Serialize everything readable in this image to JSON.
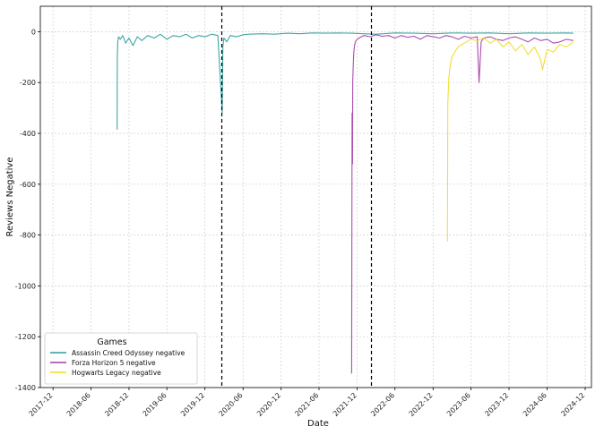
{
  "chart_data": {
    "type": "line",
    "xlabel": "Date",
    "ylabel": "Reviews Negative",
    "xlim": [
      "2017-10-01",
      "2024-12-31"
    ],
    "ylim": [
      -1400,
      100
    ],
    "x_ticks": [
      "2017-12-01",
      "2018-06-01",
      "2018-12-01",
      "2019-06-01",
      "2019-12-01",
      "2020-06-01",
      "2020-12-01",
      "2021-06-01",
      "2021-12-01",
      "2022-06-01",
      "2022-12-01",
      "2023-06-01",
      "2023-12-01",
      "2024-06-01",
      "2024-12-01"
    ],
    "x_tick_labels": [
      "2017-12",
      "2018-06",
      "2018-12",
      "2019-06",
      "2019-12",
      "2020-06",
      "2020-12",
      "2021-06",
      "2021-12",
      "2022-06",
      "2022-12",
      "2023-06",
      "2023-12",
      "2024-06",
      "2024-12"
    ],
    "y_ticks": [
      0,
      -200,
      -400,
      -600,
      -800,
      -1000,
      -1200,
      -1400
    ],
    "y_tick_labels": [
      "0",
      "-200",
      "-400",
      "-600",
      "-800",
      "-1000",
      "-1200",
      "-1400"
    ],
    "grid": true,
    "legend": {
      "title": "Games",
      "position": "lower-left"
    },
    "vlines": [
      "2020-02-20",
      "2022-02-08"
    ],
    "series": [
      {
        "name": "Assassin Creed Odyssey negative",
        "color": "#2a9d9a",
        "x": [
          "2018-10-05",
          "2018-10-06",
          "2018-10-08",
          "2018-10-12",
          "2018-10-20",
          "2018-11-01",
          "2018-11-15",
          "2018-12-01",
          "2018-12-20",
          "2019-01-10",
          "2019-02-01",
          "2019-03-01",
          "2019-04-01",
          "2019-05-01",
          "2019-06-01",
          "2019-07-01",
          "2019-08-01",
          "2019-09-01",
          "2019-10-01",
          "2019-11-01",
          "2019-12-01",
          "2020-01-01",
          "2020-02-01",
          "2020-02-22",
          "2020-02-25",
          "2020-03-01",
          "2020-03-15",
          "2020-04-01",
          "2020-05-01",
          "2020-06-01",
          "2020-07-01",
          "2020-09-01",
          "2020-11-01",
          "2021-01-01",
          "2021-03-01",
          "2021-05-01",
          "2021-07-01",
          "2021-09-01",
          "2021-11-01",
          "2022-01-01",
          "2022-03-01",
          "2022-06-01",
          "2022-09-01",
          "2022-12-01",
          "2023-03-01",
          "2023-06-01",
          "2023-09-01",
          "2023-12-01",
          "2024-03-01",
          "2024-06-01",
          "2024-09-01",
          "2024-10-05"
        ],
        "y": [
          -385,
          -100,
          -40,
          -20,
          -30,
          -15,
          -45,
          -25,
          -55,
          -20,
          -35,
          -15,
          -25,
          -10,
          -30,
          -15,
          -20,
          -10,
          -25,
          -15,
          -20,
          -10,
          -15,
          -320,
          -60,
          -25,
          -40,
          -15,
          -20,
          -12,
          -10,
          -8,
          -10,
          -6,
          -8,
          -5,
          -6,
          -5,
          -6,
          -8,
          -10,
          -5,
          -6,
          -8,
          -5,
          -6,
          -5,
          -8,
          -5,
          -6,
          -5,
          -6
        ]
      },
      {
        "name": "Forza Horizon 5 negative",
        "color": "#a23aa6",
        "x": [
          "2021-11-05",
          "2021-11-07",
          "2021-11-09",
          "2021-11-10",
          "2021-11-12",
          "2021-11-15",
          "2021-11-18",
          "2021-11-22",
          "2021-12-01",
          "2021-12-10",
          "2021-12-20",
          "2022-01-05",
          "2022-02-01",
          "2022-03-01",
          "2022-04-01",
          "2022-05-01",
          "2022-06-01",
          "2022-07-01",
          "2022-08-01",
          "2022-09-01",
          "2022-10-01",
          "2022-11-01",
          "2022-12-01",
          "2023-01-01",
          "2023-02-01",
          "2023-03-01",
          "2023-04-01",
          "2023-05-01",
          "2023-06-01",
          "2023-07-01",
          "2023-07-10",
          "2023-07-20",
          "2023-08-01",
          "2023-09-01",
          "2023-10-01",
          "2023-11-01",
          "2023-12-01",
          "2024-01-01",
          "2024-02-01",
          "2024-03-01",
          "2024-04-01",
          "2024-05-01",
          "2024-06-01",
          "2024-07-01",
          "2024-08-01",
          "2024-09-01",
          "2024-10-05"
        ],
        "y": [
          -1345,
          -320,
          -520,
          -200,
          -140,
          -80,
          -60,
          -40,
          -30,
          -25,
          -20,
          -15,
          -20,
          -12,
          -18,
          -15,
          -25,
          -15,
          -22,
          -18,
          -30,
          -15,
          -20,
          -25,
          -15,
          -20,
          -30,
          -18,
          -25,
          -20,
          -200,
          -40,
          -25,
          -20,
          -30,
          -35,
          -25,
          -20,
          -30,
          -40,
          -25,
          -35,
          -30,
          -45,
          -40,
          -30,
          -35
        ]
      },
      {
        "name": "Hogwarts Legacy negative",
        "color": "#f2dc1c",
        "x": [
          "2023-02-08",
          "2023-02-10",
          "2023-02-12",
          "2023-02-15",
          "2023-02-20",
          "2023-03-01",
          "2023-03-15",
          "2023-04-01",
          "2023-04-20",
          "2023-05-10",
          "2023-06-01",
          "2023-07-01",
          "2023-08-01",
          "2023-09-01",
          "2023-10-01",
          "2023-11-01",
          "2023-12-01",
          "2024-01-01",
          "2024-02-01",
          "2024-03-01",
          "2024-04-01",
          "2024-05-01",
          "2024-05-10",
          "2024-06-01",
          "2024-07-01",
          "2024-08-01",
          "2024-09-01",
          "2024-10-05"
        ],
        "y": [
          -825,
          -280,
          -240,
          -180,
          -140,
          -100,
          -80,
          -60,
          -50,
          -40,
          -30,
          -35,
          -25,
          -45,
          -30,
          -60,
          -40,
          -75,
          -50,
          -90,
          -60,
          -110,
          -150,
          -70,
          -80,
          -50,
          -60,
          -40
        ]
      }
    ]
  }
}
